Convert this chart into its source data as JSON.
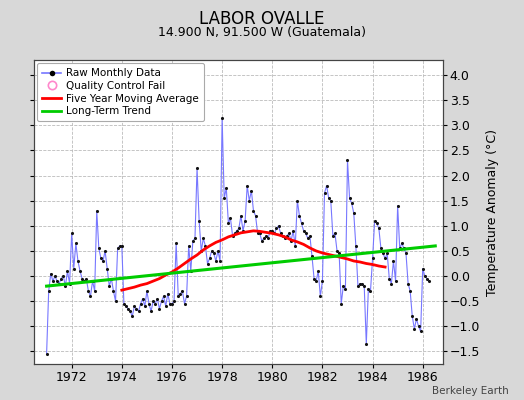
{
  "title": "LABOR OVALLE",
  "subtitle": "14.900 N, 91.500 W (Guatemala)",
  "ylabel": "Temperature Anomaly (°C)",
  "credit": "Berkeley Earth",
  "xlim": [
    1970.5,
    1986.8
  ],
  "ylim": [
    -1.75,
    4.3
  ],
  "yticks": [
    -1.5,
    -1.0,
    -0.5,
    0.0,
    0.5,
    1.0,
    1.5,
    2.0,
    2.5,
    3.0,
    3.5,
    4.0
  ],
  "xticks": [
    1972,
    1974,
    1976,
    1978,
    1980,
    1982,
    1984,
    1986
  ],
  "bg_color": "#d8d8d8",
  "plot_bg_color": "#ffffff",
  "grid_color": "#bbbbbb",
  "raw_line_color": "#7777ff",
  "raw_marker_color": "#111111",
  "moving_avg_color": "#ff0000",
  "trend_color": "#00cc00",
  "raw_x": [
    1971.0,
    1971.083,
    1971.167,
    1971.25,
    1971.333,
    1971.417,
    1971.5,
    1971.583,
    1971.667,
    1971.75,
    1971.833,
    1971.917,
    1972.0,
    1972.083,
    1972.167,
    1972.25,
    1972.333,
    1972.417,
    1972.5,
    1972.583,
    1972.667,
    1972.75,
    1972.833,
    1972.917,
    1973.0,
    1973.083,
    1973.167,
    1973.25,
    1973.333,
    1973.417,
    1973.5,
    1973.583,
    1973.667,
    1973.75,
    1973.833,
    1973.917,
    1974.0,
    1974.083,
    1974.167,
    1974.25,
    1974.333,
    1974.417,
    1974.5,
    1974.583,
    1974.667,
    1974.75,
    1974.833,
    1974.917,
    1975.0,
    1975.083,
    1975.167,
    1975.25,
    1975.333,
    1975.417,
    1975.5,
    1975.583,
    1975.667,
    1975.75,
    1975.833,
    1975.917,
    1976.0,
    1976.083,
    1976.167,
    1976.25,
    1976.333,
    1976.417,
    1976.5,
    1976.583,
    1976.667,
    1976.75,
    1976.833,
    1976.917,
    1977.0,
    1977.083,
    1977.167,
    1977.25,
    1977.333,
    1977.417,
    1977.5,
    1977.583,
    1977.667,
    1977.75,
    1977.833,
    1977.917,
    1978.0,
    1978.083,
    1978.167,
    1978.25,
    1978.333,
    1978.417,
    1978.5,
    1978.583,
    1978.667,
    1978.75,
    1978.833,
    1978.917,
    1979.0,
    1979.083,
    1979.167,
    1979.25,
    1979.333,
    1979.417,
    1979.5,
    1979.583,
    1979.667,
    1979.75,
    1979.833,
    1979.917,
    1980.0,
    1980.083,
    1980.167,
    1980.25,
    1980.333,
    1980.417,
    1980.5,
    1980.583,
    1980.667,
    1980.75,
    1980.833,
    1980.917,
    1981.0,
    1981.083,
    1981.167,
    1981.25,
    1981.333,
    1981.417,
    1981.5,
    1981.583,
    1981.667,
    1981.75,
    1981.833,
    1981.917,
    1982.0,
    1982.083,
    1982.167,
    1982.25,
    1982.333,
    1982.417,
    1982.5,
    1982.583,
    1982.667,
    1982.75,
    1982.833,
    1982.917,
    1983.0,
    1983.083,
    1983.167,
    1983.25,
    1983.333,
    1983.417,
    1983.5,
    1983.583,
    1983.667,
    1983.75,
    1983.833,
    1983.917,
    1984.0,
    1984.083,
    1984.167,
    1984.25,
    1984.333,
    1984.417,
    1984.5,
    1984.583,
    1984.667,
    1984.75,
    1984.833,
    1984.917,
    1985.0,
    1985.083,
    1985.167,
    1985.25,
    1985.333,
    1985.417,
    1985.5,
    1985.583,
    1985.667,
    1985.75,
    1985.833,
    1985.917,
    1986.0,
    1986.083,
    1986.167,
    1986.25
  ],
  "raw_y": [
    -1.55,
    -0.3,
    0.05,
    -0.1,
    0.0,
    -0.1,
    -0.15,
    -0.05,
    0.0,
    -0.2,
    0.1,
    -0.15,
    0.85,
    0.15,
    0.65,
    0.3,
    0.1,
    -0.05,
    -0.1,
    -0.05,
    -0.3,
    -0.4,
    -0.1,
    -0.3,
    1.3,
    0.55,
    0.35,
    0.3,
    0.5,
    0.15,
    -0.2,
    -0.05,
    -0.3,
    -0.5,
    0.55,
    0.6,
    0.6,
    -0.55,
    -0.6,
    -0.65,
    -0.7,
    -0.8,
    -0.6,
    -0.65,
    -0.7,
    -0.55,
    -0.45,
    -0.6,
    -0.3,
    -0.55,
    -0.7,
    -0.5,
    -0.55,
    -0.45,
    -0.65,
    -0.5,
    -0.4,
    -0.6,
    -0.35,
    -0.55,
    -0.55,
    -0.5,
    0.65,
    -0.4,
    -0.35,
    -0.3,
    -0.55,
    -0.4,
    0.6,
    0.1,
    0.7,
    0.75,
    2.15,
    1.1,
    0.5,
    0.75,
    0.6,
    0.25,
    0.35,
    0.5,
    0.45,
    0.3,
    0.5,
    0.3,
    3.15,
    1.55,
    1.75,
    1.05,
    1.15,
    0.8,
    0.85,
    0.9,
    0.95,
    1.2,
    0.9,
    1.1,
    1.8,
    1.5,
    1.7,
    1.3,
    1.2,
    0.85,
    0.85,
    0.7,
    0.75,
    0.8,
    0.75,
    0.9,
    0.9,
    0.85,
    0.95,
    1.0,
    0.85,
    0.8,
    0.75,
    0.8,
    0.85,
    0.7,
    0.9,
    0.6,
    1.5,
    1.2,
    1.05,
    0.9,
    0.85,
    0.75,
    0.8,
    0.4,
    -0.05,
    -0.1,
    0.1,
    -0.4,
    -0.1,
    1.65,
    1.8,
    1.55,
    1.5,
    0.8,
    0.85,
    0.5,
    0.45,
    -0.55,
    -0.2,
    -0.25,
    2.3,
    1.55,
    1.45,
    1.25,
    0.6,
    -0.2,
    -0.15,
    -0.15,
    -0.2,
    -1.35,
    -0.25,
    -0.3,
    0.35,
    1.1,
    1.05,
    0.95,
    0.55,
    0.45,
    0.35,
    0.45,
    -0.05,
    -0.15,
    0.3,
    -0.1,
    1.4,
    0.55,
    0.65,
    0.55,
    0.45,
    -0.15,
    -0.3,
    -0.8,
    -1.05,
    -0.85,
    -1.0,
    -1.1,
    0.15,
    0.0,
    -0.05,
    -0.1
  ],
  "moving_avg_x": [
    1974.0,
    1974.25,
    1974.5,
    1974.75,
    1975.0,
    1975.25,
    1975.5,
    1975.75,
    1976.0,
    1976.25,
    1976.5,
    1976.75,
    1977.0,
    1977.25,
    1977.5,
    1977.75,
    1978.0,
    1978.25,
    1978.5,
    1978.75,
    1979.0,
    1979.25,
    1979.5,
    1979.75,
    1980.0,
    1980.25,
    1980.5,
    1980.75,
    1981.0,
    1981.25,
    1981.5,
    1981.75,
    1982.0,
    1982.25,
    1982.5,
    1982.75,
    1983.0,
    1983.25,
    1983.5,
    1983.75,
    1984.0,
    1984.25,
    1984.5
  ],
  "moving_avg_y": [
    -0.28,
    -0.25,
    -0.22,
    -0.18,
    -0.15,
    -0.1,
    -0.05,
    0.02,
    0.08,
    0.16,
    0.25,
    0.34,
    0.42,
    0.52,
    0.6,
    0.67,
    0.72,
    0.78,
    0.82,
    0.86,
    0.88,
    0.9,
    0.89,
    0.87,
    0.85,
    0.82,
    0.78,
    0.72,
    0.68,
    0.63,
    0.56,
    0.5,
    0.46,
    0.43,
    0.4,
    0.37,
    0.34,
    0.3,
    0.28,
    0.25,
    0.23,
    0.2,
    0.18
  ],
  "trend_x": [
    1971.0,
    1986.5
  ],
  "trend_y": [
    -0.2,
    0.6
  ]
}
